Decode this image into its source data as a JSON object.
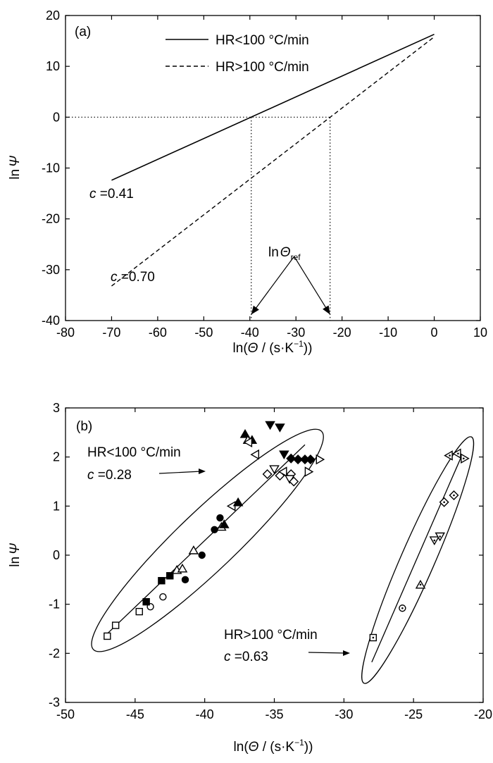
{
  "chart_data": [
    {
      "panel_label": "(a)",
      "type": "line",
      "xlabel_parts": [
        "ln(",
        "Θ",
        " / (s·K",
        "−1",
        "))"
      ],
      "ylabel_parts": [
        "ln",
        "Ψ"
      ],
      "xlim": [
        -80,
        10
      ],
      "ylim": [
        -40,
        20
      ],
      "xticks": [
        -80,
        -70,
        -60,
        -50,
        -40,
        -30,
        -20,
        -10,
        0,
        10
      ],
      "yticks": [
        -40,
        -30,
        -20,
        -10,
        0,
        10,
        20
      ],
      "legend_placement": "top",
      "series": [
        {
          "name": "HR<100 °C/min",
          "style": "solid",
          "x": [
            -70,
            0
          ],
          "y": [
            -12.4,
            16.3
          ]
        },
        {
          "name": "HR>100 °C/min",
          "style": "dashed",
          "x": [
            -70,
            0
          ],
          "y": [
            -33.2,
            15.8
          ]
        }
      ],
      "reference_lines": [
        {
          "style": "dotted",
          "x": [
            -80,
            -22.6
          ],
          "y": [
            0,
            0
          ]
        },
        {
          "style": "dotted",
          "x": [
            -39.7,
            -39.7
          ],
          "y": [
            0,
            -40
          ]
        },
        {
          "style": "dotted",
          "x": [
            -22.6,
            -22.6
          ],
          "y": [
            0,
            -40
          ]
        }
      ],
      "annotations": [
        {
          "id": "c1",
          "text_parts": [
            "c",
            " =0.41"
          ],
          "x": -72,
          "y": -15
        },
        {
          "id": "c2",
          "text_parts": [
            "c",
            " =0.70"
          ],
          "x": -68,
          "y": -31
        },
        {
          "id": "ref",
          "text_parts": [
            "ln",
            "Θ",
            "ref"
          ],
          "x": -31,
          "y": -26,
          "arrow_targets": [
            [
              -39.7,
              -38.8
            ],
            [
              -22.6,
              -38.8
            ]
          ]
        }
      ]
    },
    {
      "panel_label": "(b)",
      "type": "scatter",
      "xlabel_parts": [
        "ln(",
        "Θ",
        " / (s·K",
        "−1",
        "))"
      ],
      "ylabel_parts": [
        "ln",
        "Ψ"
      ],
      "xlim": [
        -50,
        -20
      ],
      "ylim": [
        -3,
        3
      ],
      "xticks": [
        -50,
        -45,
        -40,
        -35,
        -30,
        -25,
        -20
      ],
      "yticks": [
        -3,
        -2,
        -1,
        0,
        1,
        2,
        3
      ],
      "fit_lines": [
        {
          "x": [
            -47,
            -32.8
          ],
          "y": [
            -1.6,
            2.25
          ]
        },
        {
          "x": [
            -28,
            -21.5
          ],
          "y": [
            -2.18,
            2.05
          ]
        }
      ],
      "ellipses": [
        {
          "center": [
            -39.8,
            0.3
          ],
          "span_x": [
            -47.8,
            -31.7
          ],
          "span_y": [
            -1.9,
            2.6
          ]
        },
        {
          "center": [
            -24.7,
            -0.1
          ],
          "span_x": [
            -28.9,
            -20.5
          ],
          "span_y": [
            -2.35,
            2.1
          ]
        }
      ],
      "groups": [
        {
          "name": "HR<100 °C/min",
          "annotation_parts": [
            "HR<100 °C/min",
            "c",
            " =0.28"
          ],
          "points": [
            {
              "m": "square-open",
              "x": -47.0,
              "y": -1.65
            },
            {
              "m": "square-open",
              "x": -46.4,
              "y": -1.43
            },
            {
              "m": "square-open",
              "x": -44.7,
              "y": -1.15
            },
            {
              "m": "circle-open",
              "x": -43.9,
              "y": -1.05
            },
            {
              "m": "circle-open",
              "x": -43.0,
              "y": -0.85
            },
            {
              "m": "square-filled",
              "x": -44.2,
              "y": -0.95
            },
            {
              "m": "square-filled",
              "x": -43.1,
              "y": -0.52
            },
            {
              "m": "square-filled",
              "x": -42.5,
              "y": -0.42
            },
            {
              "m": "triangle-open",
              "x": -42.0,
              "y": -0.3
            },
            {
              "m": "triangle-open",
              "x": -41.6,
              "y": -0.27
            },
            {
              "m": "circle-filled",
              "x": -41.4,
              "y": -0.5
            },
            {
              "m": "triangle-open",
              "x": -40.8,
              "y": 0.1
            },
            {
              "m": "circle-filled",
              "x": -40.2,
              "y": 0.0
            },
            {
              "m": "circle-filled",
              "x": -39.3,
              "y": 0.52
            },
            {
              "m": "circle-filled",
              "x": -38.9,
              "y": 0.76
            },
            {
              "m": "triangle-open",
              "x": -38.8,
              "y": 0.58
            },
            {
              "m": "triangle-filled",
              "x": -38.6,
              "y": 0.63
            },
            {
              "m": "triangle-left-open",
              "x": -38.0,
              "y": 1.0
            },
            {
              "m": "triangle-filled",
              "x": -37.6,
              "y": 1.08
            },
            {
              "m": "triangle-filled",
              "x": -37.1,
              "y": 2.47
            },
            {
              "m": "triangle-open",
              "x": -36.9,
              "y": 2.35
            },
            {
              "m": "triangle-filled",
              "x": -36.6,
              "y": 2.35
            },
            {
              "m": "triangle-left-open",
              "x": -36.8,
              "y": 2.3
            },
            {
              "m": "triangle-down-filled",
              "x": -35.3,
              "y": 2.65
            },
            {
              "m": "triangle-down-filled",
              "x": -34.6,
              "y": 2.6
            },
            {
              "m": "triangle-left-open",
              "x": -36.3,
              "y": 2.05
            },
            {
              "m": "triangle-down-open",
              "x": -35.0,
              "y": 1.75
            },
            {
              "m": "triangle-down-filled",
              "x": -34.3,
              "y": 2.05
            },
            {
              "m": "diamond-filled",
              "x": -33.8,
              "y": 1.97
            },
            {
              "m": "diamond-filled",
              "x": -33.3,
              "y": 1.95
            },
            {
              "m": "diamond-filled",
              "x": -32.8,
              "y": 1.95
            },
            {
              "m": "diamond-filled",
              "x": -32.4,
              "y": 1.95
            },
            {
              "m": "triangle-right-open",
              "x": -31.8,
              "y": 1.95
            },
            {
              "m": "diamond-open",
              "x": -35.5,
              "y": 1.65
            },
            {
              "m": "diamond-open",
              "x": -34.6,
              "y": 1.62
            },
            {
              "m": "triangle-left-open",
              "x": -34.3,
              "y": 1.7
            },
            {
              "m": "diamond-open",
              "x": -33.8,
              "y": 1.65
            },
            {
              "m": "triangle-down-open",
              "x": -33.9,
              "y": 1.55
            },
            {
              "m": "diamond-open",
              "x": -33.6,
              "y": 1.5
            },
            {
              "m": "triangle-right-open",
              "x": -32.6,
              "y": 1.7
            }
          ]
        },
        {
          "name": "HR>100 °C/min",
          "annotation_parts": [
            "HR>100 °C/min",
            "c",
            " =0.63"
          ],
          "points": [
            {
              "m": "square-dot",
              "x": -27.9,
              "y": -1.68
            },
            {
              "m": "circle-dot",
              "x": -25.8,
              "y": -1.08
            },
            {
              "m": "triangle-dot",
              "x": -24.5,
              "y": -0.6
            },
            {
              "m": "triangle-down-dot",
              "x": -23.5,
              "y": 0.3
            },
            {
              "m": "triangle-down-dot",
              "x": -23.1,
              "y": 0.38
            },
            {
              "m": "diamond-dot",
              "x": -22.8,
              "y": 1.08
            },
            {
              "m": "diamond-dot",
              "x": -22.1,
              "y": 1.22
            },
            {
              "m": "triangle-left-dot",
              "x": -22.4,
              "y": 2.03
            },
            {
              "m": "triangle-left-dot",
              "x": -21.8,
              "y": 2.07
            },
            {
              "m": "triangle-right-dot",
              "x": -21.4,
              "y": 1.97
            }
          ]
        }
      ]
    }
  ]
}
